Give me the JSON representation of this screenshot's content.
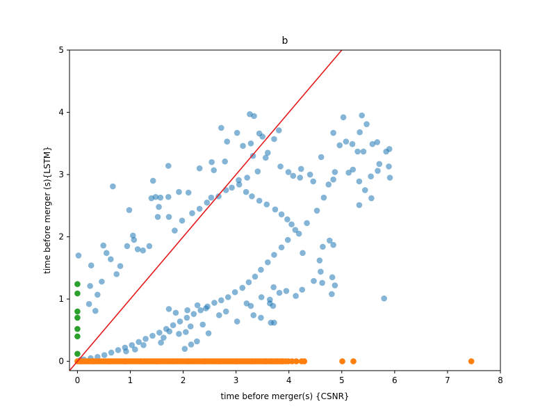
{
  "chart_data": {
    "type": "scatter",
    "title": "b",
    "xlabel": "time before merger(s) {CSNR}",
    "ylabel": "time before merger (s){LSTM}",
    "xlim": [
      -0.15,
      8
    ],
    "ylim": [
      -0.15,
      5
    ],
    "xticks": [
      0,
      1,
      2,
      3,
      4,
      5,
      6,
      7,
      8
    ],
    "yticks": [
      0,
      1,
      2,
      3,
      4,
      5
    ],
    "grid": false,
    "colors": {
      "blue": "#1f77b4",
      "orange": "#ff7f0e",
      "green": "#2ca02c",
      "line": "#e41a1c"
    },
    "reference_line": {
      "slope": 1,
      "intercept": 0
    },
    "series": [
      {
        "values_note": "",
        "points": [
          [
            0.02,
            1.7
          ],
          [
            0.67,
            2.81
          ],
          [
            0.26,
            1.54
          ],
          [
            0.49,
            1.86
          ],
          [
            0.55,
            1.74
          ],
          [
            0.63,
            1.64
          ],
          [
            0.98,
            2.43
          ],
          [
            1.05,
            2.02
          ],
          [
            1.43,
            2.9
          ],
          [
            1.4,
            2.62
          ],
          [
            1.48,
            2.64
          ],
          [
            1.57,
            2.63
          ],
          [
            1.54,
            2.48
          ],
          [
            1.72,
            2.64
          ],
          [
            1.72,
            3.14
          ],
          [
            1.92,
            2.72
          ],
          [
            2.1,
            2.71
          ],
          [
            2.31,
            3.1
          ],
          [
            2.54,
            3.2
          ],
          [
            2.58,
            3.07
          ],
          [
            2.72,
            3.75
          ],
          [
            2.79,
            3.21
          ],
          [
            2.83,
            3.53
          ],
          [
            3.02,
            3.67
          ],
          [
            3.13,
            3.46
          ],
          [
            3.26,
            3.97
          ],
          [
            3.34,
            3.94
          ],
          [
            3.28,
            3.5
          ],
          [
            3.44,
            3.66
          ],
          [
            3.5,
            3.61
          ],
          [
            3.81,
            3.71
          ],
          [
            3.72,
            3.57
          ],
          [
            3.6,
            3.35
          ],
          [
            3.56,
            3.27
          ],
          [
            3.32,
            3.3
          ],
          [
            3.41,
            3.05
          ],
          [
            3.21,
            2.95
          ],
          [
            3.05,
            2.91
          ],
          [
            3.84,
            3.13
          ],
          [
            3.99,
            3.04
          ],
          [
            4.08,
            2.98
          ],
          [
            4.23,
            3.09
          ],
          [
            4.21,
            2.95
          ],
          [
            4.4,
            3.0
          ],
          [
            4.46,
            2.89
          ],
          [
            4.61,
            3.28
          ],
          [
            4.84,
            3.67
          ],
          [
            4.96,
            3.47
          ],
          [
            5.03,
            3.92
          ],
          [
            5.08,
            3.53
          ],
          [
            5.2,
            3.49
          ],
          [
            5.38,
            3.95
          ],
          [
            5.34,
            3.68
          ],
          [
            5.47,
            3.81
          ],
          [
            5.3,
            3.37
          ],
          [
            5.41,
            3.37
          ],
          [
            5.58,
            3.49
          ],
          [
            5.67,
            3.52
          ],
          [
            5.84,
            3.37
          ],
          [
            5.9,
            3.41
          ],
          [
            5.68,
            3.06
          ],
          [
            5.71,
            3.17
          ],
          [
            5.89,
            3.13
          ],
          [
            5.91,
            2.95
          ],
          [
            5.13,
            3.03
          ],
          [
            5.21,
            3.08
          ],
          [
            5.33,
            2.89
          ],
          [
            5.44,
            2.75
          ],
          [
            5.55,
            2.97
          ],
          [
            5.33,
            2.51
          ],
          [
            5.56,
            2.62
          ],
          [
            5.8,
            1.01
          ],
          [
            4.87,
            3.04
          ],
          [
            4.84,
            2.92
          ],
          [
            4.75,
            2.84
          ],
          [
            4.66,
            2.63
          ],
          [
            4.53,
            2.42
          ],
          [
            4.34,
            2.22
          ],
          [
            4.19,
            2.05
          ],
          [
            4.26,
            1.74
          ],
          [
            4.64,
            1.84
          ],
          [
            4.77,
            1.94
          ],
          [
            4.84,
            1.87
          ],
          [
            4.58,
            1.62
          ],
          [
            4.6,
            1.44
          ],
          [
            4.82,
            1.35
          ],
          [
            4.47,
            1.29
          ],
          [
            4.63,
            1.26
          ],
          [
            4.87,
            1.22
          ],
          [
            4.81,
            1.08
          ],
          [
            4.25,
            1.15
          ],
          [
            4.13,
            1.05
          ],
          [
            3.95,
            1.13
          ],
          [
            3.82,
            1.1
          ],
          [
            3.71,
            1.19
          ],
          [
            3.64,
            0.99
          ],
          [
            3.48,
            1.03
          ],
          [
            3.64,
            0.93
          ],
          [
            3.7,
            0.89
          ],
          [
            3.2,
            0.93
          ],
          [
            3.28,
            0.89
          ],
          [
            3.33,
            0.74
          ],
          [
            3.47,
            0.7
          ],
          [
            3.66,
            0.62
          ],
          [
            3.72,
            0.62
          ],
          [
            3.02,
            0.64
          ],
          [
            2.81,
            0.8
          ],
          [
            2.68,
            0.74
          ],
          [
            2.43,
            0.85
          ],
          [
            2.27,
            0.9
          ],
          [
            2.08,
            0.82
          ],
          [
            1.86,
            0.78
          ],
          [
            1.73,
            0.84
          ],
          [
            2.48,
            0.45
          ],
          [
            2.37,
            0.59
          ],
          [
            2.14,
            0.56
          ],
          [
            2.05,
            0.47
          ],
          [
            1.92,
            0.44
          ],
          [
            1.74,
            0.48
          ],
          [
            1.63,
            0.38
          ],
          [
            1.58,
            0.3
          ],
          [
            1.25,
            0.26
          ],
          [
            1.09,
            0.19
          ],
          [
            0.92,
            0.16
          ],
          [
            2.03,
            0.2
          ],
          [
            2.15,
            0.27
          ],
          [
            2.26,
            0.32
          ],
          [
            0.34,
            0.81
          ],
          [
            0.38,
            1.07
          ],
          [
            0.46,
            1.28
          ],
          [
            0.22,
            0.92
          ],
          [
            0.24,
            1.21
          ],
          [
            0.74,
            1.4
          ],
          [
            0.81,
            1.53
          ],
          [
            0.94,
            1.85
          ],
          [
            1.07,
            1.95
          ],
          [
            1.14,
            1.8
          ],
          [
            1.24,
            1.78
          ],
          [
            1.36,
            1.85
          ],
          [
            1.52,
            2.32
          ],
          [
            1.73,
            2.32
          ],
          [
            1.84,
            2.1
          ],
          [
            1.98,
            2.26
          ],
          [
            2.17,
            2.38
          ],
          [
            2.31,
            2.45
          ],
          [
            2.45,
            2.55
          ],
          [
            2.53,
            2.63
          ],
          [
            2.67,
            2.65
          ],
          [
            2.81,
            2.75
          ],
          [
            2.92,
            2.79
          ],
          [
            3.06,
            2.84
          ],
          [
            3.19,
            2.72
          ],
          [
            3.3,
            2.65
          ],
          [
            3.44,
            2.58
          ],
          [
            3.58,
            2.52
          ],
          [
            3.74,
            2.44
          ],
          [
            3.86,
            2.36
          ],
          [
            3.97,
            2.28
          ],
          [
            4.05,
            2.2
          ],
          [
            4.12,
            2.11
          ],
          [
            3.98,
            1.95
          ],
          [
            3.86,
            1.83
          ],
          [
            3.72,
            1.71
          ],
          [
            3.6,
            1.59
          ],
          [
            3.47,
            1.47
          ],
          [
            3.36,
            1.36
          ],
          [
            3.24,
            1.27
          ],
          [
            3.12,
            1.18
          ],
          [
            2.98,
            1.11
          ],
          [
            2.85,
            1.03
          ],
          [
            2.72,
            0.98
          ],
          [
            2.59,
            0.94
          ],
          [
            2.46,
            0.88
          ],
          [
            2.33,
            0.82
          ],
          [
            2.2,
            0.76
          ],
          [
            2.07,
            0.7
          ],
          [
            1.94,
            0.64
          ],
          [
            1.81,
            0.58
          ],
          [
            1.68,
            0.52
          ],
          [
            1.55,
            0.46
          ],
          [
            1.42,
            0.41
          ],
          [
            1.29,
            0.36
          ],
          [
            1.16,
            0.31
          ],
          [
            1.03,
            0.26
          ],
          [
            0.9,
            0.22
          ],
          [
            0.77,
            0.18
          ],
          [
            0.64,
            0.14
          ],
          [
            0.51,
            0.1
          ],
          [
            0.38,
            0.07
          ],
          [
            0.25,
            0.05
          ],
          [
            0.12,
            0.03
          ],
          [
            0.05,
            0.02
          ]
        ]
      },
      {
        "points": [
          [
            0.05,
            0
          ],
          [
            0.3,
            0
          ],
          [
            0.6,
            0
          ],
          [
            0.9,
            0
          ],
          [
            1.2,
            0
          ],
          [
            1.5,
            0
          ],
          [
            1.8,
            0
          ],
          [
            2.1,
            0
          ],
          [
            2.4,
            0
          ],
          [
            2.7,
            0
          ],
          [
            3.0,
            0
          ],
          [
            3.3,
            0
          ],
          [
            3.56,
            0
          ],
          [
            3.68,
            0
          ],
          [
            3.77,
            0
          ],
          [
            3.87,
            0
          ],
          [
            3.94,
            0
          ],
          [
            3.99,
            0
          ],
          [
            4.06,
            0
          ],
          [
            4.14,
            0
          ],
          [
            4.24,
            0
          ],
          [
            4.29,
            0
          ],
          [
            5.01,
            0
          ],
          [
            5.22,
            0
          ],
          [
            7.45,
            0
          ]
        ]
      },
      {
        "points": [
          [
            0.0,
            1.24
          ],
          [
            0.0,
            1.09
          ],
          [
            0.0,
            0.8
          ],
          [
            0.0,
            0.7
          ],
          [
            0.0,
            0.52
          ],
          [
            0.0,
            0.4
          ],
          [
            0.0,
            0.12
          ]
        ]
      }
    ]
  }
}
